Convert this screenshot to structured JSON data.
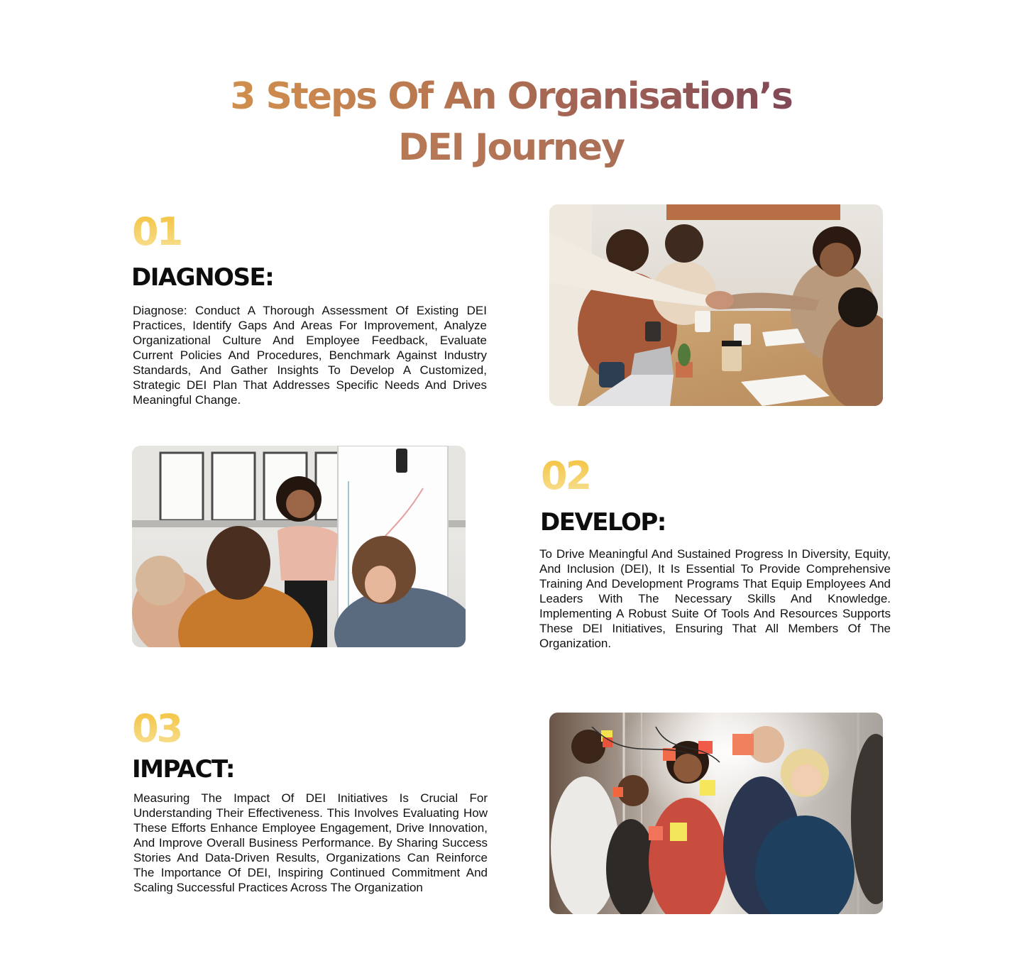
{
  "page": {
    "title_line_1": "3 Steps Of An Organisation’s",
    "title_line_2": "DEI Journey"
  },
  "steps": [
    {
      "number": "01",
      "heading": "DIAGNOSE:",
      "text": "Diagnose: Conduct A Thorough Assessment Of Existing DEI Practices, Identify Gaps And Areas For Improvement, Analyze Organizational Culture And Employee Feedback, Evaluate Current Policies And Procedures, Benchmark Against Industry Standards, And Gather Insights To Develop A Customized, Strategic DEI Plan That Addresses Specific Needs And Drives Meaningful Change."
    },
    {
      "number": "02",
      "heading": "DEVELOP:",
      "text": "To Drive Meaningful And Sustained Progress In Diversity, Equity, And Inclusion (DEI), It Is Essential To Provide Comprehensive Training And Development Programs That Equip Employees And Leaders With The Necessary Skills And Knowledge. Implementing A Robust Suite Of Tools And Resources Supports These DEI Initiatives, Ensuring That All Members Of The Organization."
    },
    {
      "number": "03",
      "heading": "IMPACT:",
      "text": "Measuring The Impact Of DEI Initiatives Is Crucial For Understanding Their Effectiveness. This Involves Evaluating How These Efforts Enhance Employee Engagement, Drive Innovation, And Improve Overall Business Performance. By Sharing Success Stories And Data-Driven Results, Organizations Can Reinforce The Importance Of DEI, Inspiring Continued Commitment And Scaling Successful Practices Across The Organization"
    }
  ],
  "colors": {
    "title_gradient_start": "#e2a64a",
    "title_gradient_end": "#5a2a58",
    "number_gradient_start": "#f4c23c",
    "number_gradient_end": "#f9e39a",
    "heading_text": "#0d0d0d"
  }
}
